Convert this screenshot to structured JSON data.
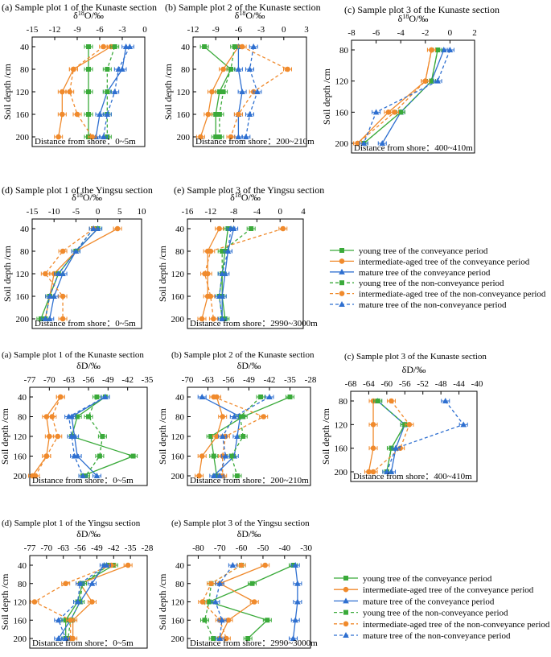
{
  "colors": {
    "young": "#3aaa3a",
    "intermediate": "#f08a2c",
    "mature": "#2e6fd0"
  },
  "ylabel": "Soil depth /cm",
  "legend": {
    "items": [
      {
        "key": "young",
        "dash": false,
        "marker": "square",
        "label": "young tree of the conveyance period"
      },
      {
        "key": "intermediate",
        "dash": false,
        "marker": "circle",
        "label": "intermediate-aged tree of the conveyance period"
      },
      {
        "key": "mature",
        "dash": false,
        "marker": "triangle",
        "label": "mature tree of the conveyance period"
      },
      {
        "key": "young",
        "dash": true,
        "marker": "square",
        "label": "young tree of the non-conveyance period"
      },
      {
        "key": "intermediate",
        "dash": true,
        "marker": "circle",
        "label": "intermediate-aged tree of the non-conveyance period"
      },
      {
        "key": "mature",
        "dash": true,
        "marker": "triangle",
        "label": "mature tree of the non-conveyance period"
      }
    ]
  },
  "chart_data": [
    {
      "type": "line",
      "title": "(a) Sample plot 1 of the Kunaste section",
      "xlabel": "δ18O/‰",
      "ylabel": "Soil depth /cm",
      "note": "Distance from shore：0~5m",
      "xlim": [
        -15,
        0
      ],
      "xticks": [
        -15,
        -12,
        -9,
        -6,
        -3,
        0
      ],
      "yticks": [
        40,
        80,
        120,
        160,
        200
      ],
      "depth": [
        40,
        80,
        120,
        160,
        200
      ],
      "series": [
        {
          "name": "young tree of the conveyance period",
          "values": [
            -7.5,
            -7.5,
            -7.5,
            -7.5,
            -7.5
          ]
        },
        {
          "name": "intermediate-aged tree of the conveyance period",
          "values": [
            -4.5,
            -9.5,
            -11,
            -11,
            -11.5
          ]
        },
        {
          "name": "mature tree of the conveyance period",
          "values": [
            -2.5,
            -3,
            -5,
            -6,
            -6.5
          ]
        },
        {
          "name": "young tree of the non-conveyance period",
          "values": [
            -4,
            -5,
            -5,
            -5,
            -5
          ]
        },
        {
          "name": "intermediate-aged tree of the non-conveyance period",
          "values": [
            -5.5,
            -9.5,
            -10,
            -9,
            -7
          ]
        },
        {
          "name": "mature tree of the non-conveyance period",
          "values": [
            -2,
            -3.5,
            -4,
            -5,
            -5.5
          ]
        }
      ]
    },
    {
      "type": "line",
      "title": "(b) Sample plot 2 of the Kunaste section",
      "xlabel": "δ18O/‰",
      "ylabel": "Soil depth /cm",
      "note": "Distance from shore：200~210m",
      "xlim": [
        -12,
        3
      ],
      "xticks": [
        -12,
        -9,
        -6,
        -3,
        0,
        3
      ],
      "yticks": [
        40,
        80,
        120,
        160,
        200
      ],
      "depth": [
        40,
        80,
        120,
        160,
        200
      ],
      "series": [
        {
          "name": "young tree of the conveyance period",
          "values": [
            -10.5,
            -7,
            -8.5,
            -9,
            -9
          ]
        },
        {
          "name": "intermediate-aged tree of the conveyance period",
          "values": [
            -6,
            -8,
            -9.5,
            -10,
            -11
          ]
        },
        {
          "name": "mature tree of the conveyance period",
          "values": [
            -6,
            -6,
            -5.5,
            -6,
            -6
          ]
        },
        {
          "name": "young tree of the non-conveyance period",
          "values": [
            -6.5,
            -7,
            -8,
            -8.5,
            -8.5
          ]
        },
        {
          "name": "intermediate-aged tree of the non-conveyance period",
          "values": [
            -5.5,
            0.5,
            -4,
            -6,
            -7
          ]
        },
        {
          "name": "mature tree of the non-conveyance period",
          "values": [
            -4,
            -4.5,
            -3.5,
            -4.5,
            -5
          ]
        }
      ]
    },
    {
      "type": "line",
      "title": "(c) Sample plot 3 of the Kunaste section",
      "xlabel": "δ18O/‰",
      "ylabel": "Soil depth /cm",
      "note": "Distance from shore：400~410m",
      "xlim": [
        -8,
        2
      ],
      "xticks": [
        -8,
        -6,
        -4,
        -2,
        0,
        2
      ],
      "yticks": [
        80,
        120,
        160,
        200
      ],
      "depth": [
        80,
        120,
        160,
        200
      ],
      "series": [
        {
          "name": "young tree of the conveyance period",
          "values": [
            -1,
            -1.5,
            -4,
            -7
          ]
        },
        {
          "name": "intermediate-aged tree of the conveyance period",
          "values": [
            -1.5,
            -2,
            -5,
            -7.5
          ]
        },
        {
          "name": "mature tree of the conveyance period",
          "values": [
            -0.5,
            -1.5,
            -4,
            -5.5
          ]
        },
        {
          "name": "young tree of the non-conveyance period",
          "values": [
            -1,
            -1.5,
            -4,
            -7
          ]
        },
        {
          "name": "intermediate-aged tree of the non-conveyance period",
          "values": [
            -1.5,
            -2,
            -4.5,
            -7.5
          ]
        },
        {
          "name": "mature tree of the non-conveyance period",
          "values": [
            0,
            -1,
            -6,
            -7
          ]
        }
      ]
    },
    {
      "type": "line",
      "title": "(d) Sample plot 1 of the Yingsu section",
      "xlabel": "δ18O/‰",
      "ylabel": "Soil depth /cm",
      "note": "Distance from shore：0~5m",
      "xlim": [
        -15,
        10
      ],
      "xticks": [
        -15,
        -10,
        -5,
        0,
        5,
        10
      ],
      "yticks": [
        40,
        80,
        120,
        160,
        200
      ],
      "depth": [
        40,
        80,
        120,
        160,
        200
      ],
      "series": [
        {
          "name": "young tree of the conveyance period",
          "values": [
            0,
            -5,
            -9,
            -11,
            -13
          ]
        },
        {
          "name": "intermediate-aged tree of the conveyance period",
          "values": [
            4.5,
            -5,
            -10,
            -11,
            -12
          ]
        },
        {
          "name": "mature tree of the conveyance period",
          "values": [
            0,
            -5,
            -8,
            -10,
            -11
          ]
        },
        {
          "name": "young tree of the non-conveyance period",
          "values": [
            -1,
            -5,
            -9,
            -11,
            -12
          ]
        },
        {
          "name": "intermediate-aged tree of the non-conveyance period",
          "values": [
            -1,
            -8,
            -12,
            -8,
            -8
          ]
        },
        {
          "name": "mature tree of the non-conveyance period",
          "values": [
            -1,
            -5,
            -9,
            -11,
            -12
          ]
        }
      ]
    },
    {
      "type": "line",
      "title": "(e) Sample plot 3 of the Yingsu section",
      "xlabel": "δ18O/‰",
      "ylabel": "Soil depth /cm",
      "note": "Distance from shore：2990~3000m",
      "xlim": [
        -16,
        4
      ],
      "xticks": [
        -16,
        -12,
        -8,
        -4,
        0,
        4
      ],
      "yticks": [
        40,
        80,
        120,
        160,
        200
      ],
      "depth": [
        40,
        80,
        120,
        160,
        200
      ],
      "series": [
        {
          "name": "young tree of the conveyance period",
          "values": [
            -9,
            -9.5,
            -10,
            -10,
            -9.5
          ]
        },
        {
          "name": "intermediate-aged tree of the conveyance period",
          "values": [
            -10.5,
            -12.5,
            -12.5,
            -12.5,
            -13.5
          ]
        },
        {
          "name": "mature tree of the conveyance period",
          "values": [
            -8,
            -9,
            -9.5,
            -10,
            -10
          ]
        },
        {
          "name": "young tree of the non-conveyance period",
          "values": [
            -5,
            -10,
            -10,
            -10.5,
            -10
          ]
        },
        {
          "name": "intermediate-aged tree of the non-conveyance period",
          "values": [
            0.5,
            -12,
            -13,
            -12,
            -11.5
          ]
        },
        {
          "name": "mature tree of the non-conveyance period",
          "values": [
            -8.5,
            -9,
            -10,
            -10.5,
            -10
          ]
        }
      ]
    },
    {
      "type": "line",
      "title": "(a) Sample plot 1 of the Kunaste section",
      "xlabel": "δD/‰",
      "ylabel": "Soil depth /cm",
      "note": "Distance from shore：0~5m",
      "xlim": [
        -77,
        -35
      ],
      "xticks": [
        -77,
        -70,
        -63,
        -56,
        -49,
        -42,
        -35
      ],
      "yticks": [
        40,
        80,
        120,
        160,
        200
      ],
      "depth": [
        40,
        80,
        120,
        160,
        200
      ],
      "series": [
        {
          "name": "young tree of the conveyance period",
          "values": [
            -50,
            -60,
            -62,
            -40,
            -58
          ]
        },
        {
          "name": "intermediate-aged tree of the conveyance period",
          "values": [
            -66,
            -71,
            -70,
            -71,
            -76
          ]
        },
        {
          "name": "mature tree of the conveyance period",
          "values": [
            -50,
            -62,
            -61,
            -60,
            -53
          ]
        },
        {
          "name": "young tree of the non-conveyance period",
          "values": [
            -53,
            -56,
            -51,
            -52,
            -57
          ]
        },
        {
          "name": "intermediate-aged tree of the non-conveyance period",
          "values": [
            -66,
            -69,
            -67,
            -71,
            -75
          ]
        },
        {
          "name": "mature tree of the non-conveyance period",
          "values": [
            -50,
            -63,
            -62,
            -61,
            -58
          ]
        }
      ]
    },
    {
      "type": "line",
      "title": "(b) Sample plot 2 of the Kunaste section",
      "xlabel": "δD/‰",
      "ylabel": "Soil depth /cm",
      "note": "Distance from shore：200~210m",
      "xlim": [
        -70,
        -28
      ],
      "xticks": [
        -70,
        -63,
        -56,
        -49,
        -42,
        -35,
        -28
      ],
      "yticks": [
        40,
        80,
        120,
        160,
        200
      ],
      "depth": [
        40,
        80,
        120,
        160,
        200
      ],
      "series": [
        {
          "name": "young tree of the conveyance period",
          "values": [
            -35,
            -51,
            -62,
            -61,
            -60
          ]
        },
        {
          "name": "intermediate-aged tree of the conveyance period",
          "values": [
            -60,
            -58,
            -60,
            -65,
            -66
          ]
        },
        {
          "name": "mature tree of the conveyance period",
          "values": [
            -65,
            -52,
            -53,
            -54,
            -61
          ]
        },
        {
          "name": "young tree of the non-conveyance period",
          "values": [
            -45,
            -52,
            -51,
            -55,
            -53
          ]
        },
        {
          "name": "intermediate-aged tree of the non-conveyance period",
          "values": [
            -61,
            -44,
            -57,
            -58,
            -58
          ]
        },
        {
          "name": "mature tree of the non-conveyance period",
          "values": [
            -42,
            -54,
            -58,
            -57,
            -59
          ]
        }
      ]
    },
    {
      "type": "line",
      "title": "(c) Sample plot 3 of the Kunaste section",
      "xlabel": "δD/‰",
      "ylabel": "Soil depth /cm",
      "note": "Distance from shore：400~410m",
      "xlim": [
        -68,
        -40
      ],
      "xticks": [
        -68,
        -64,
        -60,
        -56,
        -52,
        -48,
        -44,
        -40
      ],
      "yticks": [
        80,
        120,
        160,
        200
      ],
      "depth": [
        80,
        120,
        160,
        200
      ],
      "series": [
        {
          "name": "young tree of the conveyance period",
          "values": [
            -62,
            -56,
            -59,
            -60
          ]
        },
        {
          "name": "intermediate-aged tree of the conveyance period",
          "values": [
            -63,
            -63,
            -63,
            -64
          ]
        },
        {
          "name": "mature tree of the conveyance period",
          "values": [
            -62,
            -56,
            -58,
            -59
          ]
        },
        {
          "name": "young tree of the non-conveyance period",
          "values": [
            -62,
            -56,
            -59,
            -60
          ]
        },
        {
          "name": "intermediate-aged tree of the non-conveyance period",
          "values": [
            -59,
            -55,
            -57,
            -63
          ]
        },
        {
          "name": "mature tree of the non-conveyance period",
          "values": [
            -47,
            -43,
            -58,
            -60
          ]
        }
      ]
    },
    {
      "type": "line",
      "title": "(d) Sample plot 1 of the Yingsu section",
      "xlabel": "δD/‰",
      "ylabel": "Soil depth /cm",
      "note": "Distance from shore：0~5m",
      "xlim": [
        -77,
        -28
      ],
      "xticks": [
        -77,
        -70,
        -63,
        -56,
        -49,
        -42,
        -35,
        -28
      ],
      "yticks": [
        40,
        80,
        120,
        160,
        200
      ],
      "depth": [
        40,
        80,
        120,
        160,
        200
      ],
      "series": [
        {
          "name": "young tree of the conveyance period",
          "values": [
            -42,
            -55,
            -57,
            -62,
            -62
          ]
        },
        {
          "name": "intermediate-aged tree of the conveyance period",
          "values": [
            -36,
            -56,
            -51,
            -59,
            -59
          ]
        },
        {
          "name": "mature tree of the conveyance period",
          "values": [
            -46,
            -51,
            -56,
            -60,
            -65
          ]
        },
        {
          "name": "young tree of the non-conveyance period",
          "values": [
            -44,
            -55,
            -56,
            -60,
            -61
          ]
        },
        {
          "name": "intermediate-aged tree of the non-conveyance period",
          "values": [
            -43,
            -62,
            -75,
            -60,
            -60
          ]
        },
        {
          "name": "mature tree of the non-conveyance period",
          "values": [
            -45,
            -56,
            -57,
            -65,
            -62
          ]
        }
      ]
    },
    {
      "type": "line",
      "title": "(e) Sample plot 3 of the Yingsu section",
      "xlabel": "δD/‰",
      "ylabel": "Soil depth /cm",
      "note": "Distance from shore：2990~3000m",
      "xlim": [
        -85,
        -28
      ],
      "xticks": [
        -80,
        -70,
        -60,
        -50,
        -40,
        -30
      ],
      "yticks": [
        40,
        80,
        120,
        160,
        200
      ],
      "depth": [
        40,
        80,
        120,
        160,
        200
      ],
      "series": [
        {
          "name": "young tree of the conveyance period",
          "values": [
            -36,
            -55,
            -75,
            -48,
            -57
          ]
        },
        {
          "name": "intermediate-aged tree of the conveyance period",
          "values": [
            -49,
            -70,
            -54,
            -66,
            -70
          ]
        },
        {
          "name": "mature tree of the conveyance period",
          "values": [
            -35,
            -34,
            -34,
            -35,
            -36
          ]
        },
        {
          "name": "young tree of the non-conveyance period",
          "values": [
            -60,
            -74,
            -75,
            -77,
            -73
          ]
        },
        {
          "name": "intermediate-aged tree of the non-conveyance period",
          "values": [
            -60,
            -74,
            -78,
            -70,
            -67
          ]
        },
        {
          "name": "mature tree of the non-conveyance period",
          "values": [
            -64,
            -70,
            -72,
            -69,
            -70
          ]
        }
      ]
    }
  ]
}
